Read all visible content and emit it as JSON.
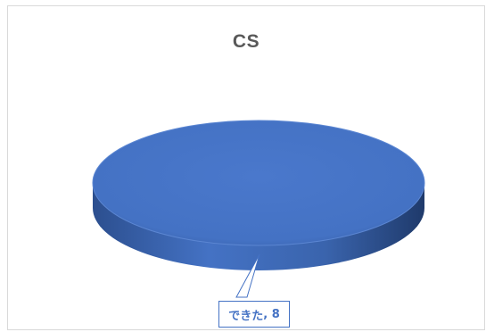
{
  "chart_data": {
    "type": "pie",
    "title": "CS",
    "categories": [
      "できた"
    ],
    "values": [
      8
    ],
    "data_labels": [
      "できた, 8"
    ],
    "style": "3d",
    "colors": [
      "#4472c4"
    ]
  }
}
